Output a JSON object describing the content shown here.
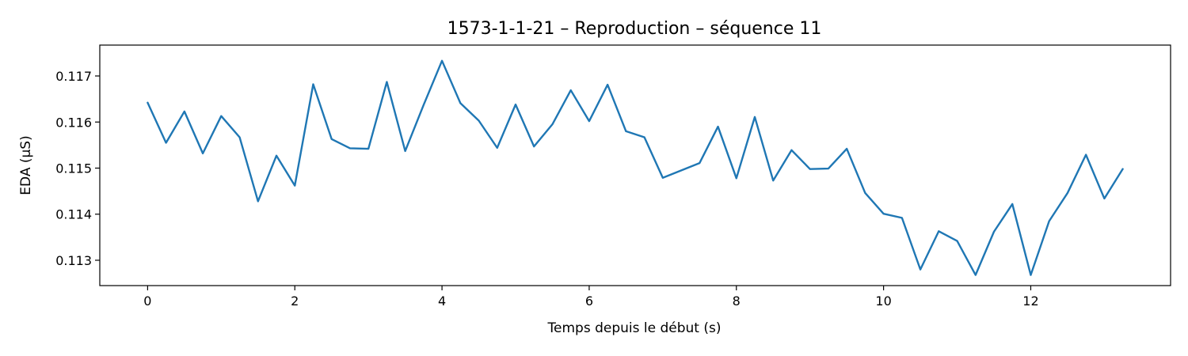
{
  "chart_data": {
    "type": "line",
    "title": "1573-1-1-21 – Reproduction – séquence 11",
    "xlabel": "Temps depuis le début (s)",
    "ylabel": "EDA (µS)",
    "xlim": [
      -0.65,
      13.9
    ],
    "ylim": [
      0.11245,
      0.11767
    ],
    "xticks": [
      0,
      2,
      4,
      6,
      8,
      10,
      12
    ],
    "xtick_labels": [
      "0",
      "2",
      "4",
      "6",
      "8",
      "10",
      "12"
    ],
    "yticks": [
      0.113,
      0.114,
      0.115,
      0.116,
      0.117
    ],
    "ytick_labels": [
      "0.113",
      "0.114",
      "0.115",
      "0.116",
      "0.117"
    ],
    "grid": false,
    "line_color": "#1f77b4",
    "series": [
      {
        "x": [
          0,
          0.25,
          0.5,
          0.75,
          1,
          1.25,
          1.5,
          1.75,
          2,
          2.25,
          2.5,
          2.75,
          3,
          3.25,
          3.5,
          3.75,
          4,
          4.25,
          4.5,
          4.75,
          5,
          5.25,
          5.5,
          5.75,
          6,
          6.25,
          6.5,
          6.75,
          7,
          7.5,
          7.75,
          8,
          8.25,
          8.5,
          8.75,
          9,
          9.25,
          9.5,
          9.75,
          10,
          10.25,
          10.5,
          10.75,
          11,
          11.25,
          11.5,
          11.75,
          12,
          12.25,
          12.5,
          12.75,
          13,
          13.25
        ],
        "values": [
          0.11642,
          0.11555,
          0.11623,
          0.11532,
          0.11613,
          0.11567,
          0.11428,
          0.11527,
          0.11462,
          0.11682,
          0.11563,
          0.11543,
          0.11542,
          0.11687,
          0.11537,
          0.11637,
          0.11733,
          0.11641,
          0.11603,
          0.11544,
          0.11638,
          0.11547,
          0.11595,
          0.11669,
          0.11602,
          0.11681,
          0.1158,
          0.11567,
          0.11479,
          0.11511,
          0.1159,
          0.11478,
          0.11611,
          0.11473,
          0.11539,
          0.11498,
          0.11499,
          0.11542,
          0.11446,
          0.11401,
          0.11392,
          0.1128,
          0.11363,
          0.11342,
          0.11268,
          0.11362,
          0.11422,
          0.11268,
          0.11385,
          0.11446,
          0.11529,
          0.11434,
          0.11498
        ]
      }
    ]
  }
}
